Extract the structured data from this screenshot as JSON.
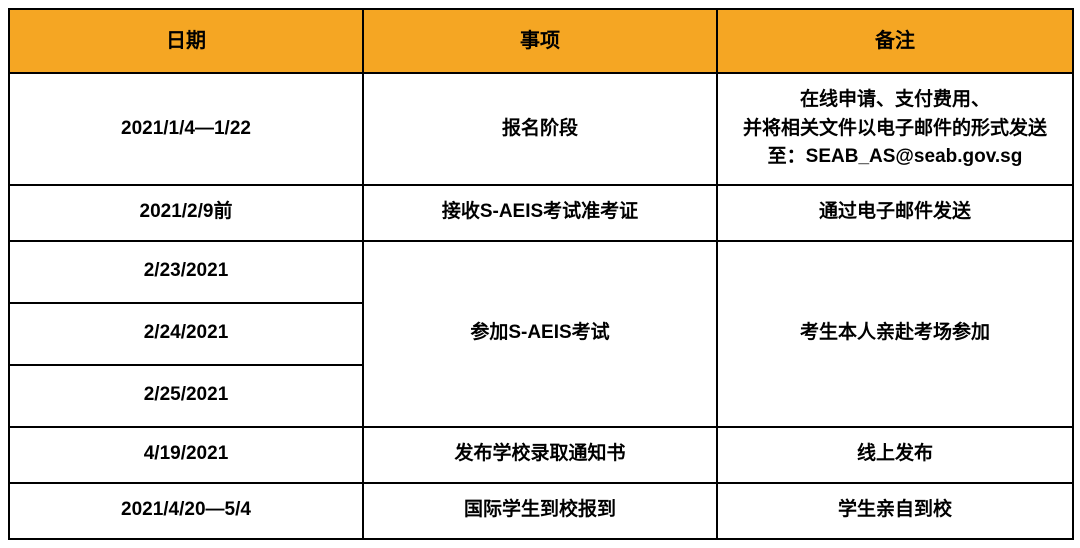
{
  "table": {
    "header_bg": "#f5a623",
    "border_color": "#000000",
    "columns": [
      {
        "key": "date",
        "label": "日期"
      },
      {
        "key": "item",
        "label": "事项"
      },
      {
        "key": "note",
        "label": "备注"
      }
    ],
    "rows": [
      {
        "date": "2021/1/4—1/22",
        "item": "报名阶段",
        "note_line1": "在线申请、支付费用、",
        "note_line2": "并将相关文件以电子邮件的形式发送",
        "note_line3": "至：SEAB_AS@seab.gov.sg"
      },
      {
        "date": "2021/2/9前",
        "item": "接收S-AEIS考试准考证",
        "note": "通过电子邮件发送"
      },
      {
        "date1": "2/23/2021",
        "date2": "2/24/2021",
        "date3": "2/25/2021",
        "item": "参加S-AEIS考试",
        "note": "考生本人亲赴考场参加"
      },
      {
        "date": "4/19/2021",
        "item": "发布学校录取通知书",
        "note": "线上发布"
      },
      {
        "date": "2021/4/20—5/4",
        "item": "国际学生到校报到",
        "note": "学生亲自到校"
      }
    ]
  }
}
